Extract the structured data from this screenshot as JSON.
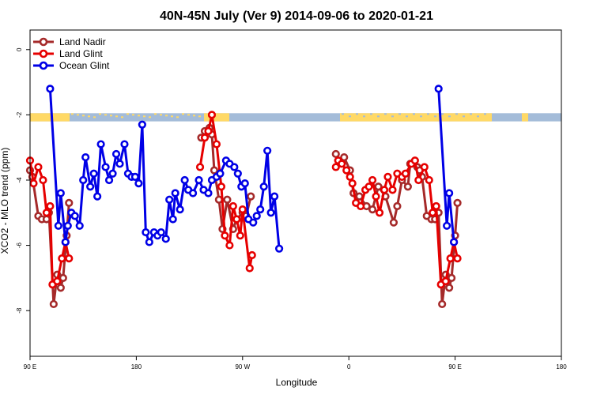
{
  "chart_data": {
    "type": "line",
    "title": "40N-45N July (Ver 9)   2014-09-06 to 2020-01-21",
    "xlabel": "Longitude",
    "ylabel": "XCO2 - MLO trend (ppm)",
    "xlim": [
      90,
      450
    ],
    "ylim": [
      -9.4,
      0.6
    ],
    "x_ticks": [
      {
        "value": 90,
        "label": "90 E"
      },
      {
        "value": 180,
        "label": "180"
      },
      {
        "value": 270,
        "label": "90 W"
      },
      {
        "value": 360,
        "label": "0"
      },
      {
        "value": 450,
        "label": "90 E"
      },
      {
        "value": 540,
        "label": "180"
      }
    ],
    "y_ticks": [
      {
        "value": 0,
        "label": "0"
      },
      {
        "value": -2,
        "label": "-2"
      },
      {
        "value": -4,
        "label": "-4"
      },
      {
        "value": -6,
        "label": "-6"
      },
      {
        "value": -8,
        "label": "-8"
      }
    ],
    "grid": false,
    "legend_position": "top-left",
    "land_ocean_strip": {
      "y_top": -1.95,
      "y_bottom": -2.2,
      "land_color": "#FFD966",
      "ocean_color": "#A4BCD9"
    },
    "series": [
      {
        "name": "Land Nadir",
        "color": "#A52A2A",
        "segments": [
          [
            [
              90,
              -3.7
            ],
            [
              92,
              -3.9
            ],
            [
              97,
              -5.1
            ],
            [
              100,
              -5.2
            ],
            [
              104,
              -5.2
            ],
            [
              106,
              -5.0
            ],
            [
              110,
              -7.8
            ],
            [
              113,
              -6.9
            ],
            [
              116,
              -7.3
            ],
            [
              118,
              -7.0
            ],
            [
              121,
              -5.7
            ],
            [
              123,
              -4.7
            ]
          ],
          [
            [
              235,
              -2.7
            ],
            [
              238,
              -2.5
            ],
            [
              242,
              -2.4
            ],
            [
              244,
              -2.6
            ],
            [
              246,
              -3.7
            ],
            [
              250,
              -4.6
            ],
            [
              253,
              -5.5
            ],
            [
              257,
              -4.6
            ],
            [
              262,
              -5.5
            ],
            [
              265,
              -5.2
            ],
            [
              270,
              -5.0
            ],
            [
              273,
              -5.1
            ],
            [
              277,
              -4.5
            ]
          ],
          [
            [
              349,
              -3.2
            ],
            [
              351,
              -3.4
            ],
            [
              356,
              -3.3
            ],
            [
              361,
              -3.7
            ],
            [
              364,
              -4.4
            ],
            [
              369,
              -4.5
            ],
            [
              375,
              -4.8
            ],
            [
              380,
              -4.9
            ],
            [
              385,
              -4.2
            ],
            [
              391,
              -4.5
            ],
            [
              398,
              -5.3
            ],
            [
              401,
              -4.8
            ],
            [
              405,
              -4.0
            ],
            [
              410,
              -4.2
            ],
            [
              412,
              -3.5
            ],
            [
              418,
              -3.6
            ],
            [
              420,
              -3.7
            ],
            [
              422,
              -3.9
            ],
            [
              426,
              -5.1
            ],
            [
              430,
              -5.2
            ],
            [
              433,
              -5.2
            ],
            [
              436,
              -5.0
            ],
            [
              439,
              -7.8
            ],
            [
              442,
              -6.9
            ],
            [
              445,
              -7.3
            ],
            [
              447,
              -7.0
            ],
            [
              450,
              -5.7
            ],
            [
              452,
              -4.7
            ]
          ]
        ]
      },
      {
        "name": "Land Glint",
        "color": "#E60000",
        "segments": [
          [
            [
              90,
              -3.4
            ],
            [
              93,
              -4.1
            ],
            [
              97,
              -3.6
            ],
            [
              101,
              -4.0
            ],
            [
              104,
              -5.0
            ],
            [
              107,
              -4.8
            ],
            [
              109,
              -7.2
            ],
            [
              113,
              -7.1
            ],
            [
              117,
              -6.4
            ],
            [
              120,
              -5.9
            ],
            [
              123,
              -6.4
            ]
          ],
          [
            [
              234,
              -3.6
            ],
            [
              238,
              -2.7
            ],
            [
              241,
              -2.5
            ],
            [
              244,
              -2.0
            ],
            [
              248,
              -2.9
            ],
            [
              252,
              -4.2
            ],
            [
              255,
              -5.7
            ],
            [
              259,
              -6.0
            ],
            [
              262,
              -4.8
            ],
            [
              265,
              -5.2
            ],
            [
              268,
              -5.7
            ],
            [
              270,
              -4.9
            ],
            [
              276,
              -6.7
            ],
            [
              278,
              -6.3
            ]
          ],
          [
            [
              349,
              -3.6
            ],
            [
              351,
              -3.4
            ],
            [
              354,
              -3.5
            ],
            [
              358,
              -3.7
            ],
            [
              361,
              -3.9
            ],
            [
              363,
              -4.1
            ],
            [
              366,
              -4.7
            ],
            [
              370,
              -4.8
            ],
            [
              374,
              -4.3
            ],
            [
              377,
              -4.2
            ],
            [
              380,
              -4.0
            ],
            [
              383,
              -4.5
            ],
            [
              386,
              -5.0
            ],
            [
              390,
              -4.3
            ],
            [
              393,
              -3.9
            ],
            [
              397,
              -4.3
            ],
            [
              401,
              -3.8
            ],
            [
              405,
              -3.9
            ],
            [
              408,
              -3.8
            ],
            [
              413,
              -3.5
            ],
            [
              416,
              -3.4
            ],
            [
              419,
              -4.0
            ],
            [
              424,
              -3.6
            ],
            [
              428,
              -4.0
            ],
            [
              431,
              -5.0
            ],
            [
              434,
              -4.8
            ],
            [
              438,
              -7.2
            ],
            [
              442,
              -7.1
            ],
            [
              446,
              -6.4
            ],
            [
              449,
              -5.9
            ],
            [
              452,
              -6.4
            ]
          ]
        ]
      },
      {
        "name": "Ocean Glint",
        "color": "#0000E6",
        "segments": [
          [
            [
              107,
              -1.2
            ],
            [
              114,
              -5.4
            ],
            [
              116,
              -4.4
            ],
            [
              120,
              -5.9
            ],
            [
              122,
              -5.4
            ],
            [
              125,
              -5.0
            ],
            [
              128,
              -5.1
            ],
            [
              132,
              -5.4
            ],
            [
              135,
              -4.0
            ],
            [
              137,
              -3.3
            ],
            [
              141,
              -4.2
            ],
            [
              144,
              -3.8
            ],
            [
              147,
              -4.5
            ],
            [
              150,
              -2.9
            ],
            [
              154,
              -3.6
            ],
            [
              157,
              -4.0
            ],
            [
              160,
              -3.8
            ],
            [
              163,
              -3.2
            ],
            [
              166,
              -3.5
            ],
            [
              170,
              -2.9
            ],
            [
              173,
              -3.8
            ],
            [
              176,
              -3.9
            ],
            [
              179,
              -3.9
            ],
            [
              182,
              -4.1
            ],
            [
              185,
              -2.3
            ],
            [
              188,
              -5.6
            ],
            [
              191,
              -5.9
            ],
            [
              195,
              -5.6
            ],
            [
              198,
              -5.7
            ],
            [
              201,
              -5.6
            ],
            [
              205,
              -5.8
            ],
            [
              208,
              -4.6
            ],
            [
              211,
              -5.2
            ],
            [
              213,
              -4.4
            ],
            [
              217,
              -4.9
            ],
            [
              221,
              -4.0
            ],
            [
              224,
              -4.3
            ],
            [
              228,
              -4.4
            ],
            [
              233,
              -4.0
            ],
            [
              237,
              -4.3
            ],
            [
              241,
              -4.4
            ],
            [
              244,
              -4.0
            ],
            [
              248,
              -3.9
            ],
            [
              251,
              -3.8
            ],
            [
              256,
              -3.4
            ],
            [
              259,
              -3.5
            ],
            [
              263,
              -3.6
            ],
            [
              266,
              -3.8
            ],
            [
              269,
              -4.2
            ],
            [
              272,
              -4.1
            ],
            [
              275,
              -5.2
            ],
            [
              279,
              -5.3
            ],
            [
              282,
              -5.1
            ],
            [
              285,
              -4.9
            ],
            [
              288,
              -4.2
            ],
            [
              291,
              -3.1
            ],
            [
              294,
              -5.0
            ],
            [
              297,
              -4.5
            ],
            [
              301,
              -6.1
            ]
          ],
          [
            [
              436,
              -1.2
            ],
            [
              443,
              -5.4
            ],
            [
              445,
              -4.4
            ],
            [
              449,
              -5.9
            ]
          ]
        ]
      }
    ]
  }
}
